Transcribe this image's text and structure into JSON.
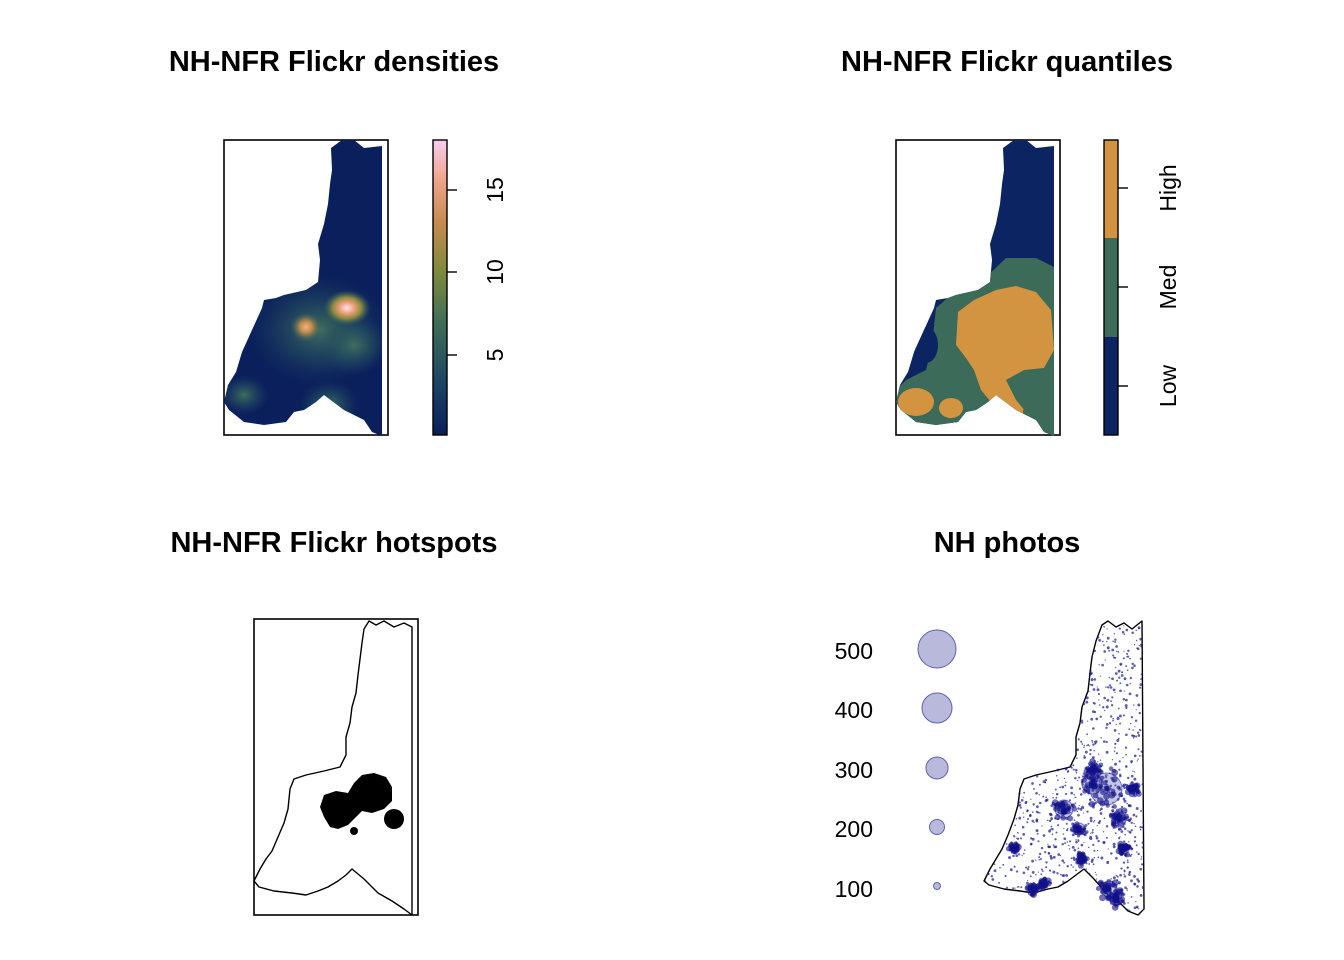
{
  "panels": [
    {
      "title": "NH-NFR Flickr densities"
    },
    {
      "title": "NH-NFR Flickr quantiles"
    },
    {
      "title": "NH-NFR Flickr hotspots"
    },
    {
      "title": "NH photos"
    }
  ],
  "density_legend": {
    "ticks": [
      "5",
      "10",
      "15"
    ],
    "colors": [
      "#0b1f5c",
      "#1e4a63",
      "#3f6e58",
      "#7d8a3c",
      "#c58a4e",
      "#f2a58e",
      "#f7cff0"
    ]
  },
  "quantile_legend": {
    "classes": [
      {
        "label": "Low",
        "color": "#0d2462"
      },
      {
        "label": "Med",
        "color": "#3c6b59"
      },
      {
        "label": "High",
        "color": "#d29440"
      }
    ]
  },
  "hotspot_color": "#000000",
  "photo_legend": {
    "values": [
      "500",
      "400",
      "300",
      "200",
      "100"
    ],
    "bubble_color": "#8080c0"
  },
  "colors": {
    "dark_navy": "#0b1f5c",
    "med_green": "#3c6b59",
    "high_orange": "#d29440"
  }
}
